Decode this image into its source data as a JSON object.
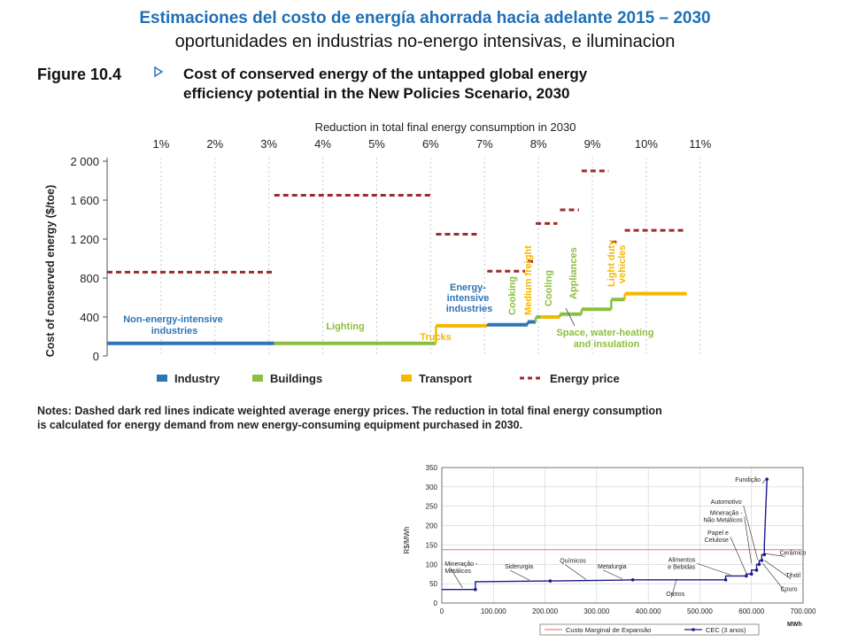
{
  "slide": {
    "title": "Estimaciones del costo de energía ahorrada hacia adelante 2015 – 2030",
    "subtitle": "oportunidades en industrias no-energo intensivas, e iluminacion"
  },
  "figure1": {
    "figure_label": "Figure 10.4",
    "title_line1": "Cost of conserved energy of the untapped global energy",
    "title_line2": "efficiency potential in the New Policies Scenario, 2030",
    "notes_line1": "Notes: Dashed dark red lines indicate weighted average energy prices. The reduction in total final energy consumption",
    "notes_line2": "is calculated for energy demand from new energy-consuming equipment purchased in 2030.",
    "colors": {
      "industry": "#2e75b6",
      "buildings": "#8cbf3f",
      "transport": "#f5b800",
      "energy_price": "#9e2a2b"
    },
    "chart_data": {
      "type": "line",
      "title": "Cost of conserved energy of the untapped global energy efficiency potential in the New Policies Scenario, 2030",
      "xlabel": "Reduction in total final energy consumption in 2030",
      "ylabel": "Cost of conserved energy ($/toe)",
      "x_ticks": [
        "1%",
        "2%",
        "3%",
        "4%",
        "5%",
        "6%",
        "7%",
        "8%",
        "9%",
        "10%",
        "11%"
      ],
      "y_ticks": [
        "0",
        "400",
        "800",
        "1 200",
        "1 600",
        "2 000"
      ],
      "xlim": [
        0,
        11.2
      ],
      "ylim": [
        0,
        2000
      ],
      "grid": "vertical",
      "legend": [
        "Industry",
        "Buildings",
        "Transport",
        "Energy price"
      ],
      "segments": [
        {
          "label": "Non-energy-intensive industries",
          "sector": "industry",
          "x": [
            0.0,
            3.1
          ],
          "cost": 130
        },
        {
          "label": "Lighting",
          "sector": "buildings",
          "x": [
            3.1,
            6.1
          ],
          "cost": 130
        },
        {
          "label": "Trucks",
          "sector": "transport",
          "x": [
            6.1,
            7.05
          ],
          "cost": 310
        },
        {
          "label": "Energy-intensive industries",
          "sector": "industry",
          "x": [
            7.05,
            7.8
          ],
          "cost": 320
        },
        {
          "label": "",
          "sector": "industry",
          "x": [
            7.8,
            7.95
          ],
          "cost": 350
        },
        {
          "label": "Cooking",
          "sector": "buildings",
          "x": [
            7.95,
            8.05
          ],
          "cost": 400
        },
        {
          "label": "Medium freight",
          "sector": "transport",
          "x": [
            8.05,
            8.4
          ],
          "cost": 400
        },
        {
          "label": "Cooling",
          "sector": "buildings",
          "x": [
            8.4,
            8.8
          ],
          "cost": 430
        },
        {
          "label": "Appliances",
          "sector": "buildings",
          "x": [
            8.8,
            9.35
          ],
          "cost": 480
        },
        {
          "label": "Space, water-heating and insulation",
          "sector": "buildings",
          "x": [
            9.35,
            9.6
          ],
          "cost": 580
        },
        {
          "label": "Light duty vehicles",
          "sector": "transport",
          "x": [
            9.6,
            10.75
          ],
          "cost": 640
        }
      ],
      "energy_prices": [
        {
          "x": [
            0.0,
            3.1
          ],
          "price": 860
        },
        {
          "x": [
            3.1,
            6.0
          ],
          "price": 1650
        },
        {
          "x": [
            6.1,
            6.9
          ],
          "price": 1250
        },
        {
          "x": [
            7.05,
            7.75
          ],
          "price": 870
        },
        {
          "x": [
            7.8,
            7.9
          ],
          "price": 970
        },
        {
          "x": [
            7.95,
            8.35
          ],
          "price": 1360
        },
        {
          "x": [
            8.4,
            8.75
          ],
          "price": 1500
        },
        {
          "x": [
            8.8,
            9.3
          ],
          "price": 1900
        },
        {
          "x": [
            9.35,
            9.5
          ],
          "price": 1170
        },
        {
          "x": [
            9.6,
            10.75
          ],
          "price": 1290
        }
      ]
    }
  },
  "figure2": {
    "colors": {
      "cme": "#f08080",
      "cec": "#1a1a8c"
    },
    "chart_data": {
      "type": "line",
      "ylabel": "R$/MWh",
      "xlabel": "MWh",
      "x_ticks": [
        "0",
        "100.000",
        "200.000",
        "300.000",
        "400.000",
        "500.000",
        "600.000",
        "700.000"
      ],
      "y_ticks": [
        "0",
        "50",
        "100",
        "150",
        "200",
        "250",
        "300",
        "350"
      ],
      "xlim": [
        0,
        700000
      ],
      "ylim": [
        0,
        350
      ],
      "grid": "both",
      "series": [
        {
          "name": "Custo Marginal de Expansão",
          "type": "line",
          "x": [
            0,
            700000
          ],
          "y": [
            138,
            138
          ]
        },
        {
          "name": "CEC (3 anos)",
          "type": "step",
          "x": [
            0,
            65000,
            65000,
            210000,
            340000,
            370000,
            440000,
            550000,
            550000,
            590000,
            590000,
            600000,
            600000,
            610000,
            610000,
            615000,
            615000,
            620000,
            620000,
            625000,
            625000,
            630000
          ],
          "y": [
            35,
            35,
            55,
            57,
            59,
            60,
            60,
            60,
            70,
            70,
            75,
            75,
            85,
            85,
            100,
            100,
            110,
            110,
            125,
            125,
            150,
            320
          ]
        }
      ],
      "annotations": [
        {
          "text": [
            "Mineração -",
            "Metálicos"
          ],
          "x": 40000,
          "y": 37
        },
        {
          "text": [
            "Siderurgia"
          ],
          "x": 170000,
          "y": 57
        },
        {
          "text": [
            "Químicos"
          ],
          "x": 280000,
          "y": 58
        },
        {
          "text": [
            "Metalurgia"
          ],
          "x": 350000,
          "y": 60
        },
        {
          "text": [
            "Outros"
          ],
          "x": 455000,
          "y": 60
        },
        {
          "text": [
            "Alimentos",
            "e Bebidas"
          ],
          "x": 560000,
          "y": 70
        },
        {
          "text": [
            "Papel e",
            "Celulose"
          ],
          "x": 590000,
          "y": 75
        },
        {
          "text": [
            "Mineração -",
            "Não Metálicos"
          ],
          "x": 600000,
          "y": 100
        },
        {
          "text": [
            "Automotivo"
          ],
          "x": 612000,
          "y": 110
        },
        {
          "text": [
            "Fundição"
          ],
          "x": 628000,
          "y": 318
        },
        {
          "text": [
            "Cerâmico"
          ],
          "x": 627000,
          "y": 125
        },
        {
          "text": [
            "Têxtil"
          ],
          "x": 625000,
          "y": 108
        },
        {
          "text": [
            "Couro"
          ],
          "x": 622000,
          "y": 100
        }
      ]
    }
  }
}
